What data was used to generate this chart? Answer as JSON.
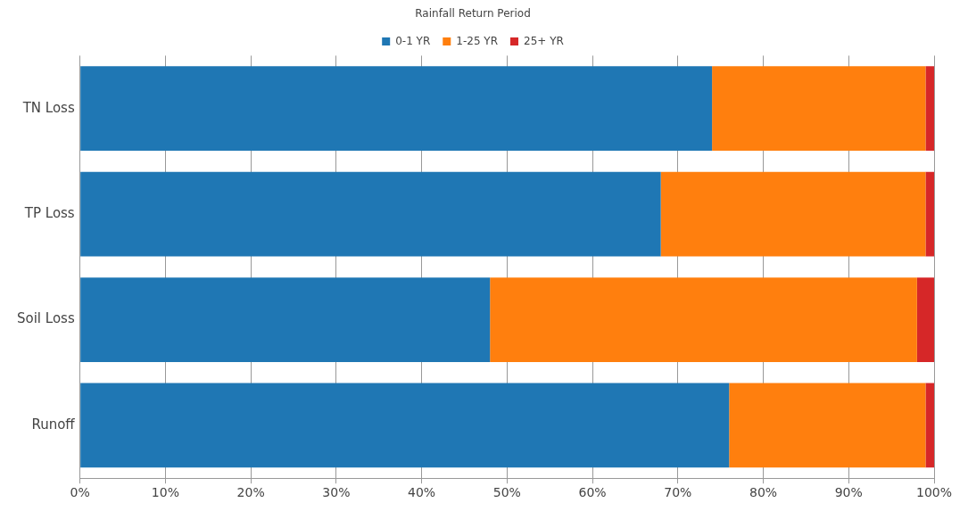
{
  "chart_data": {
    "type": "bar",
    "orientation": "horizontal",
    "stacked": true,
    "legend_title": "Rainfall Return Period",
    "legend": "top",
    "grid": "x",
    "categories": [
      "TN Loss",
      "TP Loss",
      "Soil Loss",
      "Runoff"
    ],
    "series": [
      {
        "name": "0-1 YR",
        "color": "#1f77b4",
        "values": [
          74,
          68,
          48,
          76
        ]
      },
      {
        "name": "1-25 YR",
        "color": "#ff7f0e",
        "values": [
          25,
          31,
          50,
          23
        ]
      },
      {
        "name": "25+ YR",
        "color": "#d62728",
        "values": [
          1,
          1,
          2,
          1
        ]
      }
    ],
    "xlim": [
      0,
      100
    ],
    "xticks": [
      {
        "value": 0,
        "label": "0%"
      },
      {
        "value": 10,
        "label": "10%"
      },
      {
        "value": 20,
        "label": "20%"
      },
      {
        "value": 30,
        "label": "30%"
      },
      {
        "value": 40,
        "label": "40%"
      },
      {
        "value": 50,
        "label": "50%"
      },
      {
        "value": 60,
        "label": "60%"
      },
      {
        "value": 70,
        "label": "70%"
      },
      {
        "value": 80,
        "label": "80%"
      },
      {
        "value": 90,
        "label": "90%"
      },
      {
        "value": 100,
        "label": "100%"
      }
    ]
  }
}
